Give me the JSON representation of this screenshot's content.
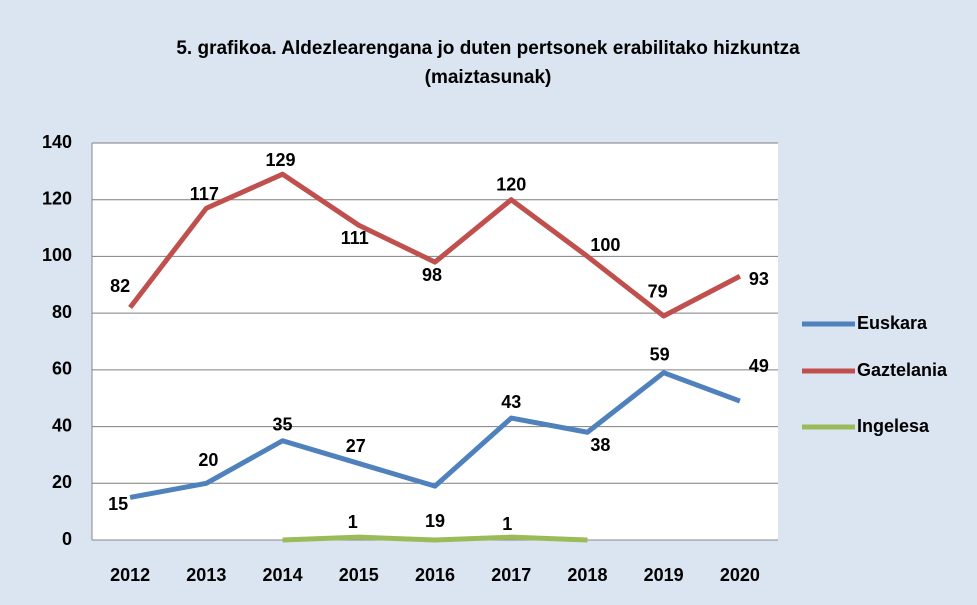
{
  "chart_data": {
    "type": "line",
    "title": "5. grafikoa. Aldezlearengana jo duten pertsonek erabilitako hizkuntza (maiztasunak)",
    "categories": [
      "2012",
      "2013",
      "2014",
      "2015",
      "2016",
      "2017",
      "2018",
      "2019",
      "2020"
    ],
    "series": [
      {
        "name": "Euskara",
        "color": "#4f81bd",
        "values": [
          15,
          20,
          35,
          27,
          19,
          43,
          38,
          59,
          49
        ]
      },
      {
        "name": "Gaztelania",
        "color": "#c0504d",
        "values": [
          82,
          117,
          129,
          111,
          98,
          120,
          100,
          79,
          93
        ]
      },
      {
        "name": "Ingelesa",
        "color": "#9bbb59",
        "values": [
          null,
          null,
          0,
          1,
          0,
          1,
          0,
          null,
          null
        ],
        "value_labels": [
          null,
          null,
          null,
          "1",
          null,
          "1",
          null,
          null,
          null
        ]
      }
    ],
    "ylim": [
      0,
      140
    ],
    "yticks": [
      0,
      20,
      40,
      60,
      80,
      100,
      120,
      140
    ],
    "grid": true,
    "legend": "right"
  }
}
